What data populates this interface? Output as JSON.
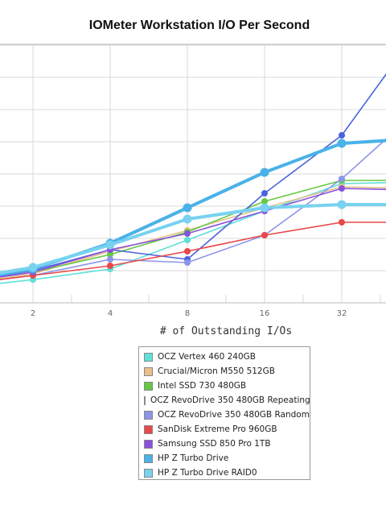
{
  "chart_data": {
    "type": "line",
    "title": "IOMeter Workstation I/O Per Second",
    "xlabel": "# of Outstanding I/Os",
    "ylabel": "",
    "x": [
      1,
      2,
      4,
      8,
      16,
      32,
      64
    ],
    "x_tick_labels": [
      "2",
      "4",
      "8",
      "16",
      "32"
    ],
    "x_scale": "log2",
    "grid": true,
    "legend_position": "bottom-center",
    "series": [
      {
        "name": "OCZ Vertex 460 240GB",
        "color": "#5fe0d8",
        "values": [
          0.45,
          0.72,
          1.05,
          1.95,
          2.85,
          3.7,
          3.75
        ]
      },
      {
        "name": "Crucial/Micron M550 512GB",
        "color": "#e8c08a",
        "values": [
          0.55,
          0.9,
          1.6,
          2.25,
          2.95,
          3.6,
          3.55
        ]
      },
      {
        "name": "Intel SSD 730 480GB",
        "color": "#66c944",
        "values": [
          0.6,
          0.95,
          1.5,
          2.2,
          3.15,
          3.8,
          3.8
        ]
      },
      {
        "name": "OCZ RevoDrive 350 480GB Repeating",
        "color": "#4a63dc",
        "values": [
          0.6,
          1.0,
          1.65,
          1.35,
          3.4,
          5.2,
          8.5
        ]
      },
      {
        "name": "OCZ RevoDrive 350 480GB Random",
        "color": "#8c95e8",
        "values": [
          0.55,
          0.85,
          1.35,
          1.25,
          2.1,
          3.85,
          6.0
        ]
      },
      {
        "name": "SanDisk Extreme Pro 960GB",
        "color": "#e84848",
        "values": [
          0.55,
          0.85,
          1.15,
          1.6,
          2.1,
          2.5,
          2.5
        ]
      },
      {
        "name": "Samsung SSD 850 Pro 1TB",
        "color": "#8a52dc",
        "values": [
          0.6,
          0.95,
          1.65,
          2.15,
          2.85,
          3.55,
          3.5
        ]
      },
      {
        "name": "HP Z Turbo Drive",
        "color": "#4ab2e8",
        "values": [
          0.65,
          1.05,
          1.85,
          2.95,
          4.05,
          4.95,
          5.1
        ]
      },
      {
        "name": "HP Z Turbo Drive RAID0",
        "color": "#78d2f0",
        "values": [
          0.7,
          1.1,
          1.8,
          2.6,
          2.95,
          3.05,
          3.05
        ]
      }
    ]
  }
}
